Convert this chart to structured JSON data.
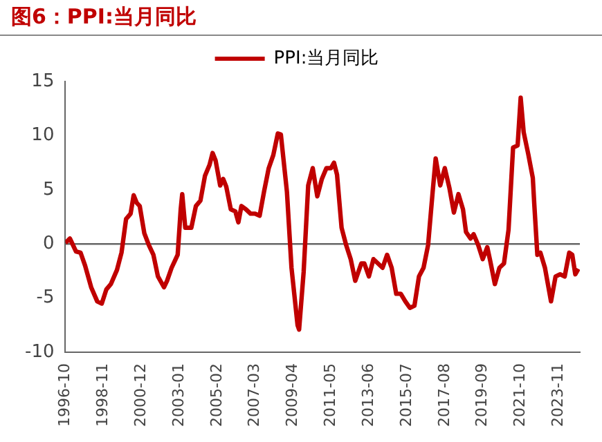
{
  "chart_data": {
    "type": "line",
    "title": "图6：PPI:当月同比",
    "legend": "top",
    "x": [
      "1996-10",
      "1997-01",
      "1997-05",
      "1997-08",
      "1997-11",
      "1998-03",
      "1998-07",
      "1998-10",
      "1999-01",
      "1999-04",
      "1999-08",
      "1999-11",
      "2000-02",
      "2000-05",
      "2000-07",
      "2000-09",
      "2000-11",
      "2001-02",
      "2001-05",
      "2001-08",
      "2001-11",
      "2002-03",
      "2002-05",
      "2002-08",
      "2002-12",
      "2003-02",
      "2003-03",
      "2003-05",
      "2003-09",
      "2003-12",
      "2004-03",
      "2004-06",
      "2004-09",
      "2004-11",
      "2005-01",
      "2005-04",
      "2005-06",
      "2005-08",
      "2005-11",
      "2006-02",
      "2006-04",
      "2006-06",
      "2006-09",
      "2006-12",
      "2007-03",
      "2007-06",
      "2007-09",
      "2007-12",
      "2008-03",
      "2008-06",
      "2008-08",
      "2008-12",
      "2009-03",
      "2009-07",
      "2009-08",
      "2009-11",
      "2010-02",
      "2010-05",
      "2010-08",
      "2010-11",
      "2011-02",
      "2011-05",
      "2011-07",
      "2011-09",
      "2011-12",
      "2012-03",
      "2012-06",
      "2012-09",
      "2013-01",
      "2013-03",
      "2013-06",
      "2013-09",
      "2013-12",
      "2014-03",
      "2014-06",
      "2014-09",
      "2014-12",
      "2015-03",
      "2015-06",
      "2015-09",
      "2015-12",
      "2016-03",
      "2016-06",
      "2016-09",
      "2016-12",
      "2017-02",
      "2017-05",
      "2017-08",
      "2017-11",
      "2018-02",
      "2018-05",
      "2018-08",
      "2018-10",
      "2019-01",
      "2019-03",
      "2019-06",
      "2019-09",
      "2019-12",
      "2020-02",
      "2020-05",
      "2020-08",
      "2020-11",
      "2021-02",
      "2021-05",
      "2021-08",
      "2021-10",
      "2021-12",
      "2022-03",
      "2022-06",
      "2022-07",
      "2022-09",
      "2022-11",
      "2023-02",
      "2023-06",
      "2023-09",
      "2023-12",
      "2024-03",
      "2024-06",
      "2024-08",
      "2024-10",
      "2024-12"
    ],
    "series": [
      {
        "name": "PPI:当月同比",
        "color": "#c00000",
        "values": [
          0.1,
          0.5,
          -0.7,
          -0.8,
          -2,
          -4,
          -5.3,
          -5.5,
          -4.2,
          -3.7,
          -2.4,
          -0.8,
          2.3,
          2.8,
          4.5,
          3.8,
          3.5,
          1,
          -0.1,
          -1,
          -3,
          -4,
          -3.4,
          -2.2,
          -1,
          3.2,
          4.6,
          1.5,
          1.5,
          3.5,
          4,
          6.3,
          7.3,
          8.4,
          7.7,
          5.4,
          6,
          5.3,
          3.2,
          3,
          2,
          3.5,
          3.2,
          2.8,
          2.8,
          2.6,
          4.9,
          7,
          8.2,
          10.2,
          10.1,
          4.8,
          -2.2,
          -7.5,
          -7.9,
          -2.6,
          5.4,
          7,
          4.4,
          6,
          7,
          7,
          7.5,
          6.4,
          1.5,
          -0.1,
          -1.4,
          -3.4,
          -1.8,
          -1.8,
          -3,
          -1.4,
          -1.8,
          -2.2,
          -1,
          -2.2,
          -4.6,
          -4.6,
          -5.3,
          -5.9,
          -5.7,
          -3,
          -2.2,
          -0.1,
          4.8,
          7.9,
          5.4,
          7,
          5.2,
          2.9,
          4.6,
          3.2,
          1.1,
          0.5,
          0.9,
          -0.1,
          -1.4,
          -0.3,
          -1.6,
          -3.7,
          -2.2,
          -1.8,
          1.3,
          8.9,
          9.1,
          13.5,
          10.3,
          8.3,
          6.1,
          3.6,
          -1,
          -0.8,
          -2.2,
          -5.3,
          -3,
          -2.8,
          -3,
          -0.8,
          -1,
          -2.8,
          -2.3
        ]
      }
    ],
    "xlim": [
      "1996-10",
      "2025-01"
    ],
    "xticks": [
      "1996-10",
      "1998-11",
      "2000-12",
      "2003-01",
      "2005-02",
      "2007-03",
      "2009-04",
      "2011-05",
      "2013-06",
      "2015-07",
      "2017-08",
      "2019-09",
      "2021-10",
      "2023-11"
    ],
    "ref_lines": [
      {
        "axis": "y",
        "value": 0,
        "color": "#666666"
      }
    ],
    "ylim": [
      -10,
      15
    ],
    "yticks": [
      -10,
      -5,
      0,
      5,
      10,
      15
    ],
    "grid": false,
    "marker": "none",
    "line_style": "solid"
  }
}
